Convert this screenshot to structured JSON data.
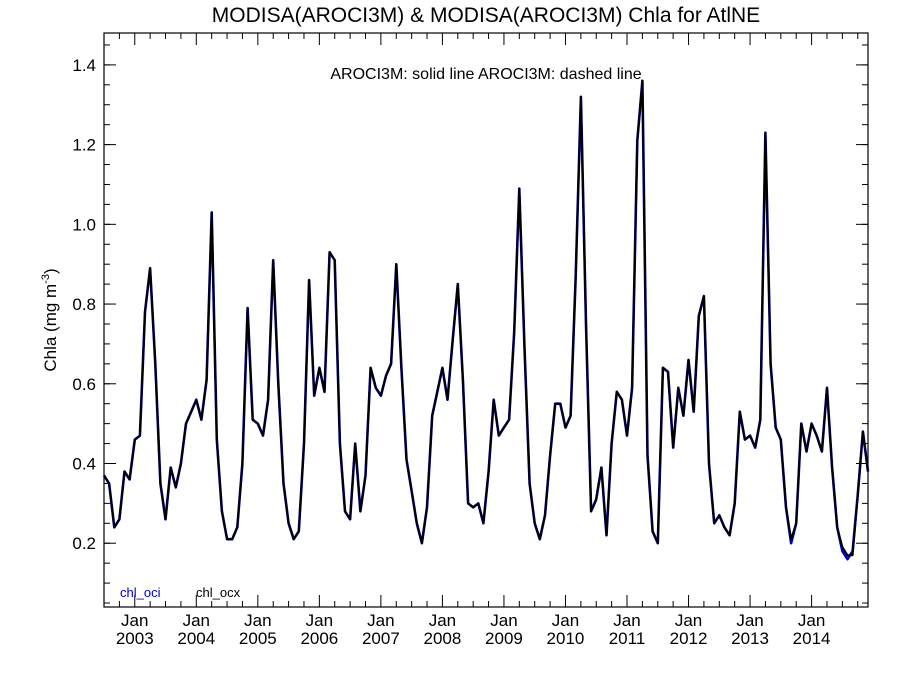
{
  "chart_data": {
    "type": "line",
    "title": "MODISA(AROCI3M) & MODISA(AROCI3M)  Chla for AtlNE",
    "ylabel_main": "Chla (mg m",
    "ylabel_sup": "-3",
    "ylabel_tail": ")",
    "annotation": "AROCI3M: solid line   AROCI3M: dashed line",
    "ylim": [
      0.04,
      1.48
    ],
    "yticks": [
      0.2,
      0.4,
      0.6,
      0.8,
      1.0,
      1.2,
      1.4
    ],
    "ytick_labels": [
      "0.2",
      "0.4",
      "0.6",
      "0.8",
      "1.0",
      "1.2",
      "1.4"
    ],
    "xlim": [
      "2002-07",
      "2014-12"
    ],
    "xticks": [
      {
        "month": "Jan",
        "year": "2003",
        "date": "2003-01"
      },
      {
        "month": "Jan",
        "year": "2004",
        "date": "2004-01"
      },
      {
        "month": "Jan",
        "year": "2005",
        "date": "2005-01"
      },
      {
        "month": "Jan",
        "year": "2006",
        "date": "2006-01"
      },
      {
        "month": "Jan",
        "year": "2007",
        "date": "2007-01"
      },
      {
        "month": "Jan",
        "year": "2008",
        "date": "2008-01"
      },
      {
        "month": "Jan",
        "year": "2009",
        "date": "2009-01"
      },
      {
        "month": "Jan",
        "year": "2010",
        "date": "2010-01"
      },
      {
        "month": "Jan",
        "year": "2011",
        "date": "2011-01"
      },
      {
        "month": "Jan",
        "year": "2012",
        "date": "2012-01"
      },
      {
        "month": "Jan",
        "year": "2013",
        "date": "2013-01"
      },
      {
        "month": "Jan",
        "year": "2014",
        "date": "2014-01"
      }
    ],
    "start_month": "2002-07",
    "grid": false,
    "series": [
      {
        "name": "chl_oci",
        "color": "#0000cc",
        "values": [
          0.37,
          0.35,
          0.24,
          0.26,
          0.38,
          0.36,
          0.46,
          0.47,
          0.78,
          0.89,
          0.65,
          0.35,
          0.26,
          0.39,
          0.34,
          0.4,
          0.5,
          0.53,
          0.56,
          0.51,
          0.61,
          1.03,
          0.46,
          0.28,
          0.21,
          0.21,
          0.24,
          0.4,
          0.79,
          0.51,
          0.5,
          0.47,
          0.56,
          0.91,
          0.6,
          0.35,
          0.25,
          0.21,
          0.23,
          0.45,
          0.86,
          0.57,
          0.64,
          0.58,
          0.93,
          0.91,
          0.45,
          0.28,
          0.26,
          0.45,
          0.28,
          0.37,
          0.64,
          0.59,
          0.57,
          0.62,
          0.65,
          0.9,
          0.64,
          0.41,
          0.33,
          0.25,
          0.2,
          0.29,
          0.52,
          0.58,
          0.64,
          0.56,
          0.71,
          0.85,
          0.61,
          0.3,
          0.29,
          0.3,
          0.25,
          0.38,
          0.56,
          0.47,
          0.49,
          0.51,
          0.73,
          1.09,
          0.69,
          0.35,
          0.25,
          0.21,
          0.27,
          0.42,
          0.55,
          0.55,
          0.49,
          0.52,
          0.87,
          1.32,
          0.75,
          0.28,
          0.31,
          0.39,
          0.22,
          0.45,
          0.58,
          0.56,
          0.47,
          0.59,
          1.21,
          1.36,
          0.42,
          0.23,
          0.2,
          0.64,
          0.63,
          0.44,
          0.59,
          0.52,
          0.66,
          0.53,
          0.77,
          0.82,
          0.4,
          0.25,
          0.27,
          0.24,
          0.22,
          0.3,
          0.53,
          0.46,
          0.47,
          0.44,
          0.51,
          1.23,
          0.65,
          0.49,
          0.46,
          0.29,
          0.2,
          0.25,
          0.5,
          0.43,
          0.5,
          0.47,
          0.43,
          0.59,
          0.39,
          0.24,
          0.18,
          0.16,
          0.18,
          0.32,
          0.48,
          0.38
        ]
      },
      {
        "name": "chl_ocx",
        "color": "#000000",
        "values": [
          0.37,
          0.35,
          0.24,
          0.26,
          0.38,
          0.36,
          0.46,
          0.47,
          0.78,
          0.89,
          0.65,
          0.35,
          0.26,
          0.39,
          0.34,
          0.4,
          0.5,
          0.53,
          0.56,
          0.51,
          0.61,
          1.03,
          0.46,
          0.28,
          0.21,
          0.21,
          0.24,
          0.4,
          0.79,
          0.51,
          0.5,
          0.47,
          0.56,
          0.91,
          0.6,
          0.35,
          0.25,
          0.21,
          0.23,
          0.45,
          0.86,
          0.57,
          0.64,
          0.58,
          0.93,
          0.91,
          0.45,
          0.28,
          0.26,
          0.45,
          0.28,
          0.37,
          0.64,
          0.59,
          0.57,
          0.62,
          0.65,
          0.9,
          0.64,
          0.41,
          0.33,
          0.25,
          0.2,
          0.29,
          0.52,
          0.58,
          0.64,
          0.56,
          0.71,
          0.85,
          0.61,
          0.3,
          0.29,
          0.3,
          0.25,
          0.38,
          0.56,
          0.47,
          0.49,
          0.51,
          0.73,
          1.09,
          0.69,
          0.35,
          0.25,
          0.21,
          0.27,
          0.42,
          0.55,
          0.55,
          0.49,
          0.52,
          0.87,
          1.32,
          0.75,
          0.28,
          0.31,
          0.39,
          0.22,
          0.45,
          0.58,
          0.56,
          0.47,
          0.59,
          1.21,
          1.36,
          0.42,
          0.23,
          0.2,
          0.64,
          0.63,
          0.44,
          0.59,
          0.52,
          0.66,
          0.53,
          0.77,
          0.82,
          0.4,
          0.25,
          0.27,
          0.24,
          0.22,
          0.3,
          0.53,
          0.46,
          0.47,
          0.44,
          0.51,
          1.23,
          0.65,
          0.49,
          0.46,
          0.29,
          0.21,
          0.25,
          0.5,
          0.43,
          0.5,
          0.47,
          0.43,
          0.59,
          0.39,
          0.24,
          0.19,
          0.17,
          0.17,
          0.32,
          0.48,
          0.38
        ]
      }
    ]
  }
}
